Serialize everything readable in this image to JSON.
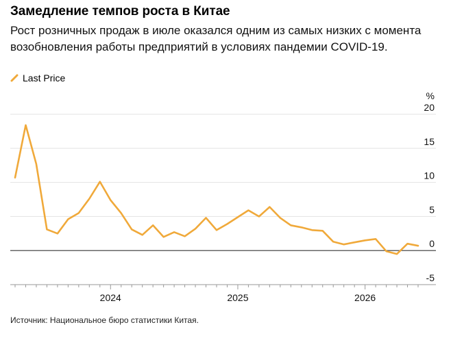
{
  "title": "Замедление темпов роста в Китае",
  "subtitle": "Рост розничных продаж в июле оказался одним из самых низких с момента возобновления работы предприятий в условиях пандемии COVID-19.",
  "source": "Источник: Национальное бюро статистики Китая.",
  "colors": {
    "line": "#f0a93a",
    "grid": "#e3e3e3",
    "zero": "#333333"
  },
  "chart_data": {
    "type": "line",
    "series": [
      {
        "name": "Last Price",
        "values": [
          10.7,
          18.4,
          12.7,
          3.1,
          2.5,
          4.6,
          5.5,
          7.6,
          10.1,
          7.4,
          5.5,
          3.1,
          2.3,
          3.7,
          2.0,
          2.7,
          2.1,
          3.2,
          4.8,
          3.0,
          3.9,
          4.9,
          5.9,
          5.0,
          6.4,
          4.8,
          3.7,
          3.4,
          3.0,
          2.9,
          1.3,
          0.9,
          1.2,
          1.5,
          1.7,
          -0.1,
          -0.5,
          1.0,
          0.7
        ]
      }
    ],
    "ylabel": "%",
    "ylim": [
      -5,
      20
    ],
    "y_ticks": [
      -5,
      0,
      5,
      10,
      15,
      20
    ],
    "x_tick_labels": [
      "2024",
      "2025",
      "2026"
    ],
    "x_tick_label_index": [
      9,
      21,
      33
    ],
    "legend_position": "top-left",
    "grid": true
  }
}
